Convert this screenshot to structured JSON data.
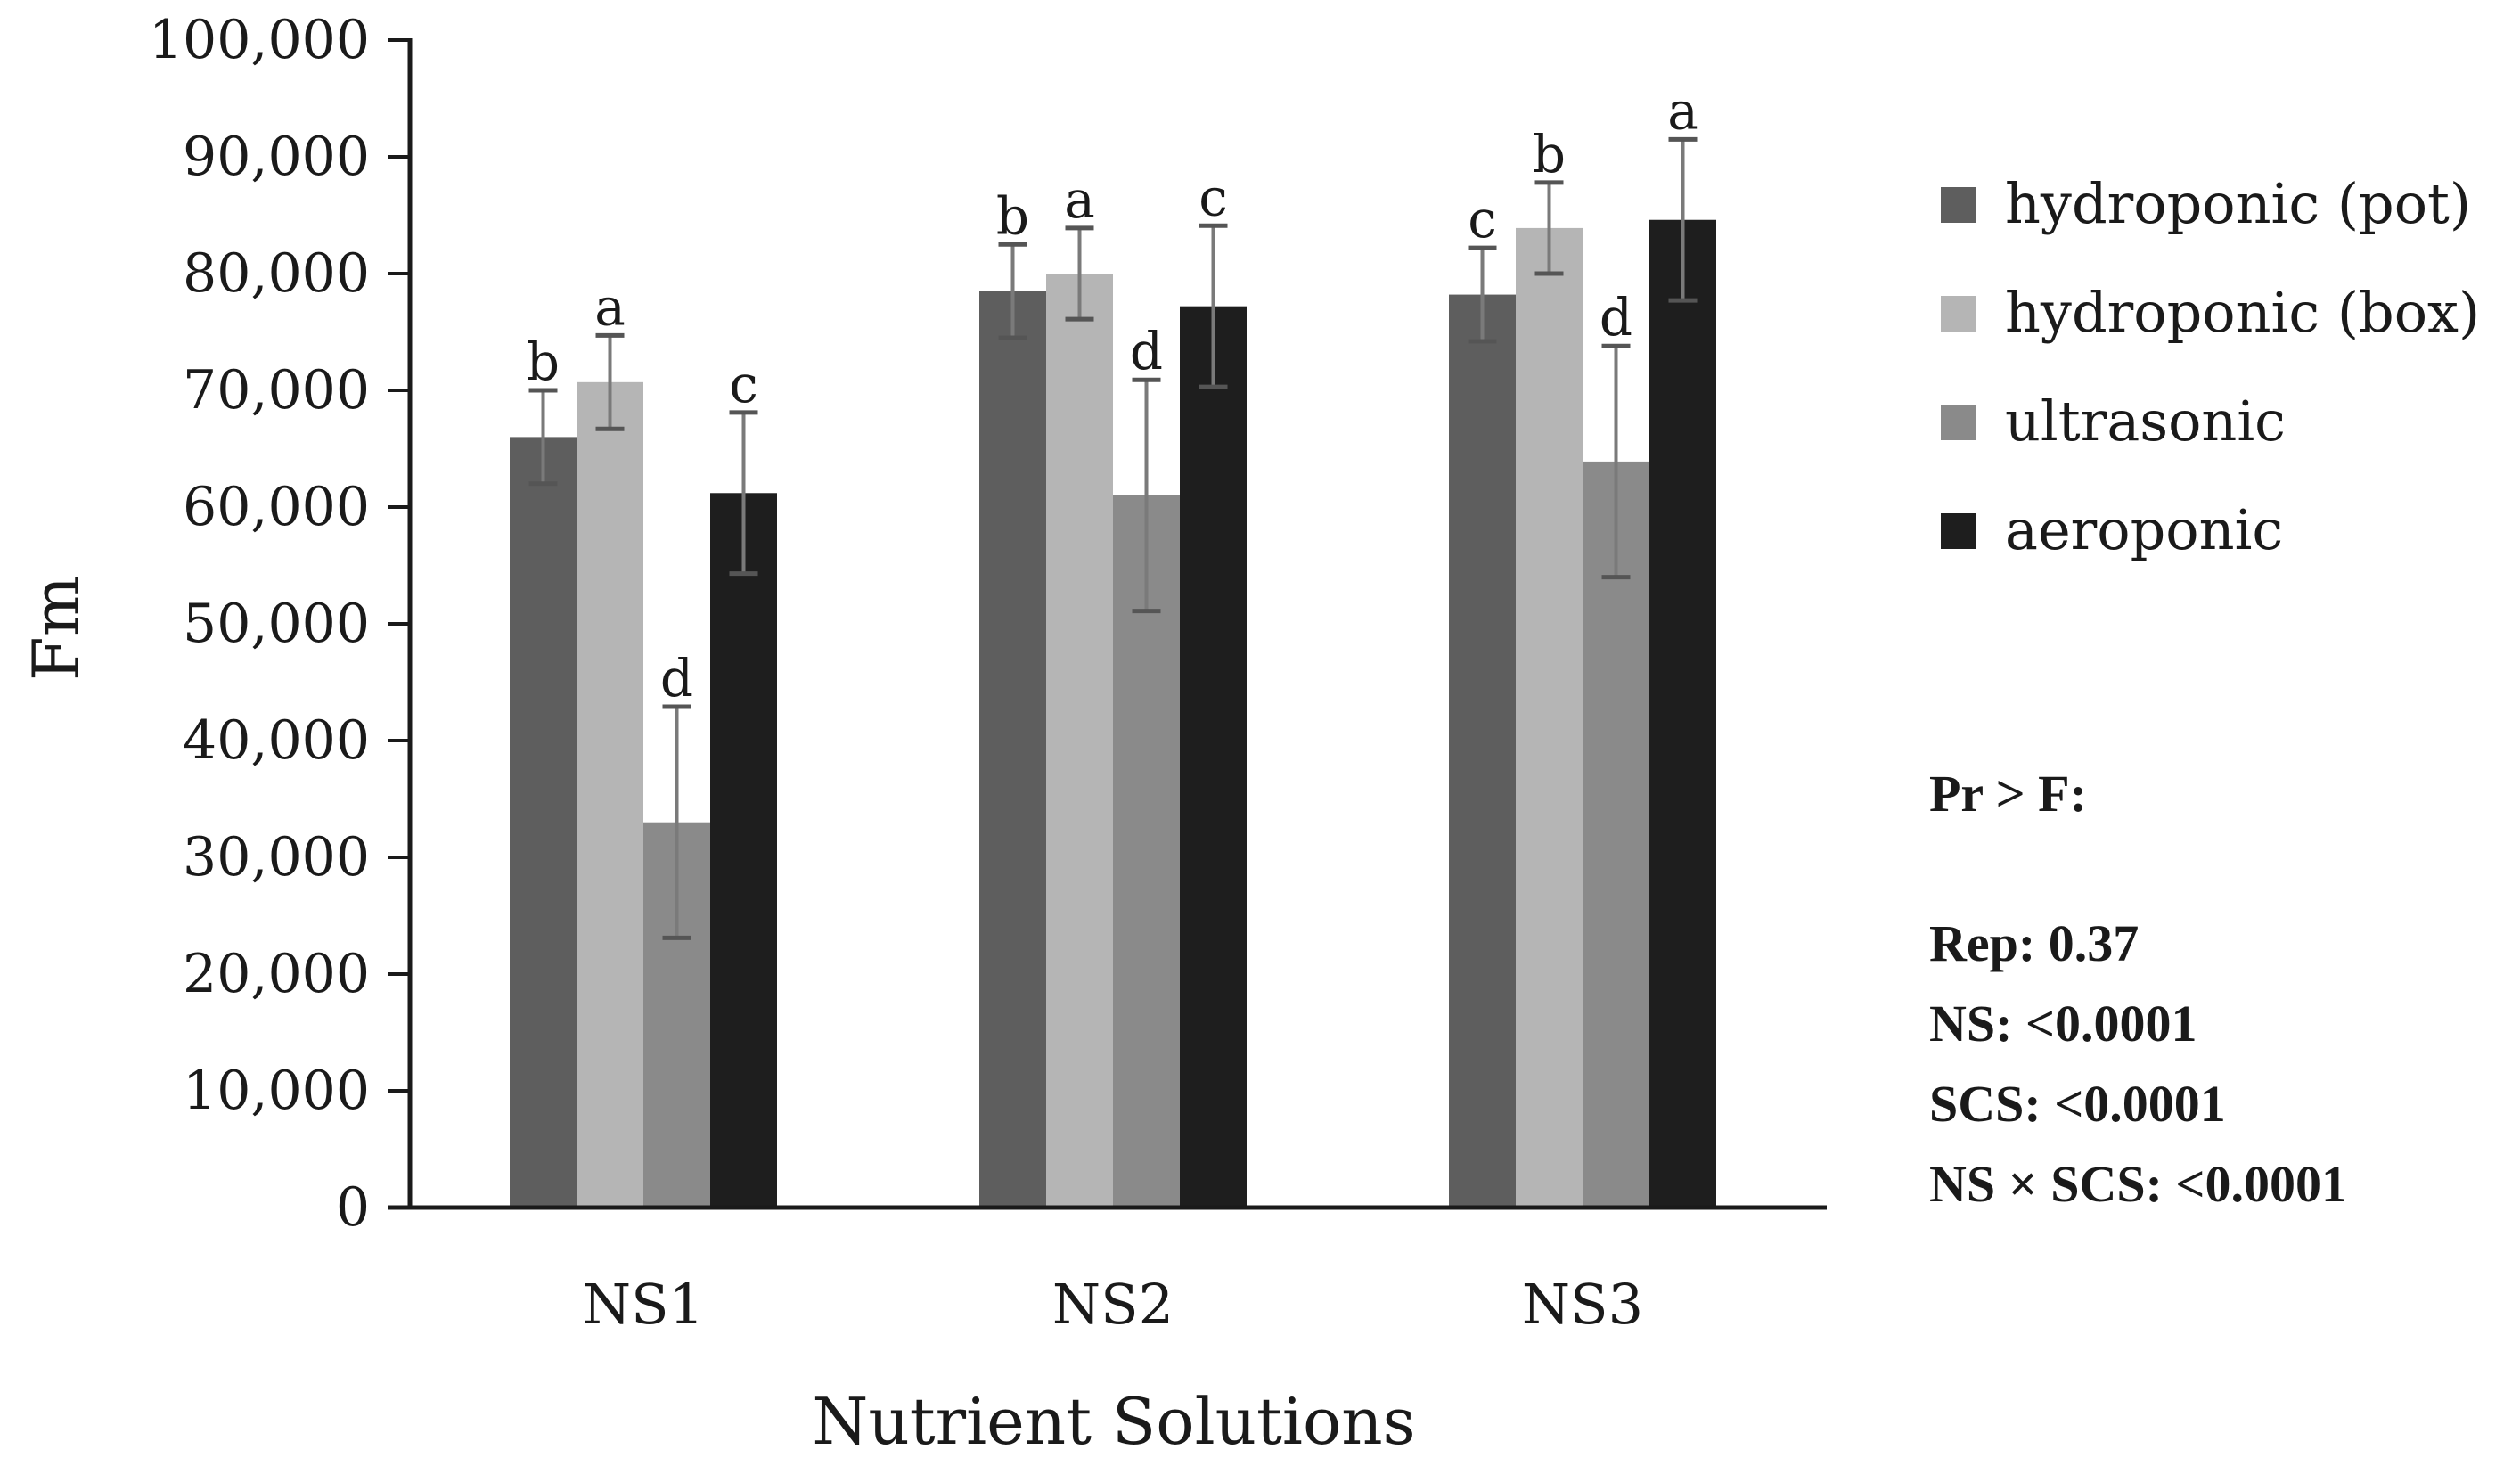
{
  "chart_data": {
    "type": "bar",
    "title": "",
    "xlabel": "Nutrient Solutions",
    "ylabel": "Fm",
    "ylim": [
      0,
      100000
    ],
    "yticks": [
      0,
      10000,
      20000,
      30000,
      40000,
      50000,
      60000,
      70000,
      80000,
      90000,
      100000
    ],
    "ytick_labels": [
      "0",
      "10,000",
      "20,000",
      "30,000",
      "40,000",
      "50,000",
      "60,000",
      "70,000",
      "80,000",
      "90,000",
      "100,000"
    ],
    "categories": [
      "NS1",
      "NS2",
      "NS3"
    ],
    "grid": false,
    "legend_position": "right",
    "series": [
      {
        "name": "hydroponic (pot)",
        "color": "#5e5e5e",
        "values": [
          66000,
          78500,
          78200
        ],
        "errors": [
          4000,
          4000,
          4000
        ],
        "letters": [
          "b",
          "b",
          "c"
        ]
      },
      {
        "name": "hydroponic (box)",
        "color": "#b5b5b5",
        "values": [
          70700,
          80000,
          83900
        ],
        "errors": [
          4000,
          3900,
          3900
        ],
        "letters": [
          "a",
          "a",
          "b"
        ]
      },
      {
        "name": "ultrasonic",
        "color": "#8a8a8a",
        "values": [
          33000,
          61000,
          63900
        ],
        "errors": [
          9900,
          9900,
          9900
        ],
        "letters": [
          "d",
          "d",
          "d"
        ]
      },
      {
        "name": "aeroponic",
        "color": "#1e1e1e",
        "values": [
          61200,
          77200,
          84600
        ],
        "errors": [
          6900,
          6900,
          6900
        ],
        "letters": [
          "c",
          "c",
          "a"
        ]
      }
    ],
    "annotations": {
      "heading": "Pr > F:",
      "lines": [
        "Rep: 0.37",
        "NS: <0.0001",
        "SCS: <0.0001",
        "NS × SCS: <0.0001"
      ]
    }
  }
}
